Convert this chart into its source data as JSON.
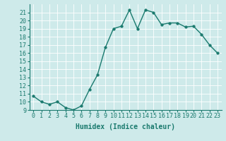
{
  "x": [
    0,
    1,
    2,
    3,
    4,
    5,
    6,
    7,
    8,
    9,
    10,
    11,
    12,
    13,
    14,
    15,
    16,
    17,
    18,
    19,
    20,
    21,
    22,
    23
  ],
  "y": [
    10.7,
    10.0,
    9.7,
    10.0,
    9.3,
    9.0,
    9.5,
    11.5,
    13.3,
    16.7,
    19.0,
    19.3,
    21.3,
    19.0,
    21.3,
    21.0,
    19.5,
    19.7,
    19.7,
    19.2,
    19.3,
    18.3,
    17.0,
    16.0
  ],
  "line_color": "#1a7a6e",
  "marker_color": "#1a7a6e",
  "bg_color": "#ceeaea",
  "grid_color": "#b0d8d8",
  "xlabel": "Humidex (Indice chaleur)",
  "xlim": [
    -0.5,
    23.5
  ],
  "ylim": [
    9,
    22
  ],
  "yticks": [
    9,
    10,
    11,
    12,
    13,
    14,
    15,
    16,
    17,
    18,
    19,
    20,
    21
  ],
  "xticks": [
    0,
    1,
    2,
    3,
    4,
    5,
    6,
    7,
    8,
    9,
    10,
    11,
    12,
    13,
    14,
    15,
    16,
    17,
    18,
    19,
    20,
    21,
    22,
    23
  ],
  "xlabel_fontsize": 7,
  "tick_fontsize": 6,
  "line_width": 1.0,
  "marker_size": 2.5
}
